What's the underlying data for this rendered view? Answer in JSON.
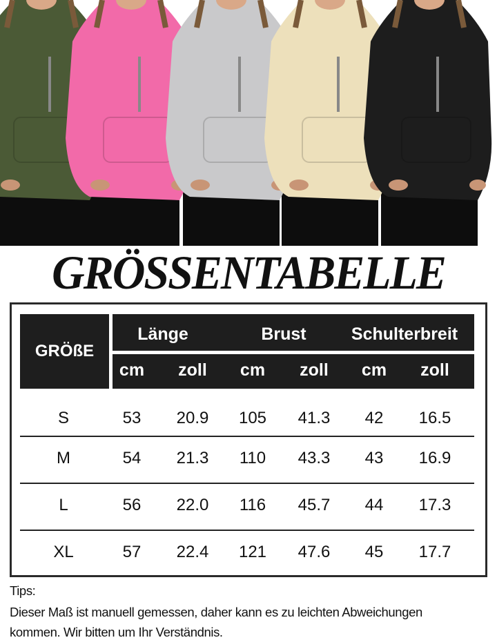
{
  "photo": {
    "hoodie_colors": [
      "#4b5a36",
      "#f26aa9",
      "#c9c9cb",
      "#ede0bb",
      "#1d1d1d"
    ],
    "leggings_color": "#0d0d0d"
  },
  "title": "GRÖSSENTABELLE",
  "table": {
    "size_header": "GRÖßE",
    "groups": [
      "Länge",
      "Brust",
      "Schulterbreit"
    ],
    "units": [
      "cm",
      "zoll",
      "cm",
      "zoll",
      "cm",
      "zoll"
    ],
    "rows": [
      {
        "size": "S",
        "values": [
          "53",
          "20.9",
          "105",
          "41.3",
          "42",
          "16.5"
        ]
      },
      {
        "size": "M",
        "values": [
          "54",
          "21.3",
          "110",
          "43.3",
          "43",
          "16.9"
        ]
      },
      {
        "size": "L",
        "values": [
          "56",
          "22.0",
          "116",
          "45.7",
          "44",
          "17.3"
        ]
      },
      {
        "size": "XL",
        "values": [
          "57",
          "22.4",
          "121",
          "47.6",
          "45",
          "17.7"
        ]
      }
    ]
  },
  "tips": {
    "label": "Tips:",
    "line1": "Dieser Maß ist manuell gemessen, daher kann es zu leichten Abweichungen",
    "line2": "kommen. Wir bitten um Ihr Verständnis."
  }
}
